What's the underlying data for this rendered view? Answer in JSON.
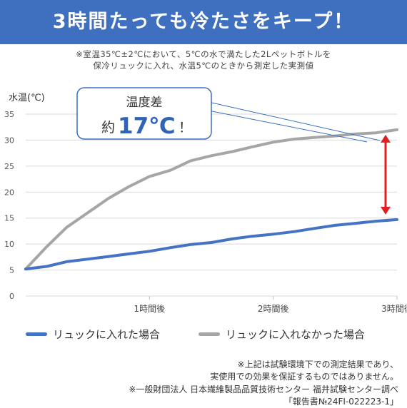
{
  "banner": {
    "title": "3時間たっても冷たさをキープ！",
    "color": "#3f6fbf"
  },
  "notes": {
    "line1": "※室温35℃±2℃において、5℃の水で満たした2Lペットボトルを",
    "line2": "保冷リュックに入れ、水温5℃のときから測定した実測値"
  },
  "callout": {
    "label": "温度差",
    "prefix": "約",
    "value": "17℃",
    "suffix": "！"
  },
  "chart_data": {
    "type": "line",
    "ylabel": "水温(℃)",
    "xlabel": "",
    "ylim": [
      0,
      35
    ],
    "yticks": [
      0,
      5,
      10,
      15,
      20,
      25,
      30,
      35
    ],
    "xlim": [
      0,
      3
    ],
    "xticks": [
      {
        "x": 1,
        "label": "1時間後"
      },
      {
        "x": 2,
        "label": "2時間後"
      },
      {
        "x": 3,
        "label": "3時間後"
      }
    ],
    "grid": true,
    "legend_position": "bottom",
    "series": [
      {
        "name": "リュックに入れた場合",
        "color": "#4472c4",
        "x": [
          0,
          0.17,
          0.33,
          0.5,
          0.67,
          0.83,
          1.0,
          1.17,
          1.33,
          1.5,
          1.67,
          1.83,
          2.0,
          2.17,
          2.33,
          2.5,
          2.67,
          2.83,
          3.0
        ],
        "y": [
          5.2,
          5.7,
          6.6,
          7.1,
          7.6,
          8.1,
          8.6,
          9.3,
          9.9,
          10.3,
          11.0,
          11.5,
          11.9,
          12.4,
          13.0,
          13.6,
          14.0,
          14.4,
          14.7
        ]
      },
      {
        "name": "リュックに入れなかった場合",
        "color": "#a6a6a6",
        "x": [
          0,
          0.17,
          0.33,
          0.5,
          0.67,
          0.83,
          1.0,
          1.17,
          1.33,
          1.5,
          1.67,
          1.83,
          2.0,
          2.17,
          2.33,
          2.5,
          2.67,
          2.83,
          3.0
        ],
        "y": [
          5.2,
          9.5,
          13.2,
          16.0,
          18.8,
          21.0,
          23.0,
          24.2,
          26.0,
          27.0,
          27.8,
          28.7,
          29.6,
          30.2,
          30.5,
          30.8,
          31.2,
          31.4,
          32.0
        ]
      }
    ]
  },
  "footer": {
    "line1": "※上記は試験環境下での測定結果であり、",
    "line2": "実使用での効果を保証するものではありません。",
    "line3": "※一般財団法人 日本繊維製品品質技術センター 福井試験センター調べ",
    "line4": "「報告書№24FI-022223-1」"
  }
}
